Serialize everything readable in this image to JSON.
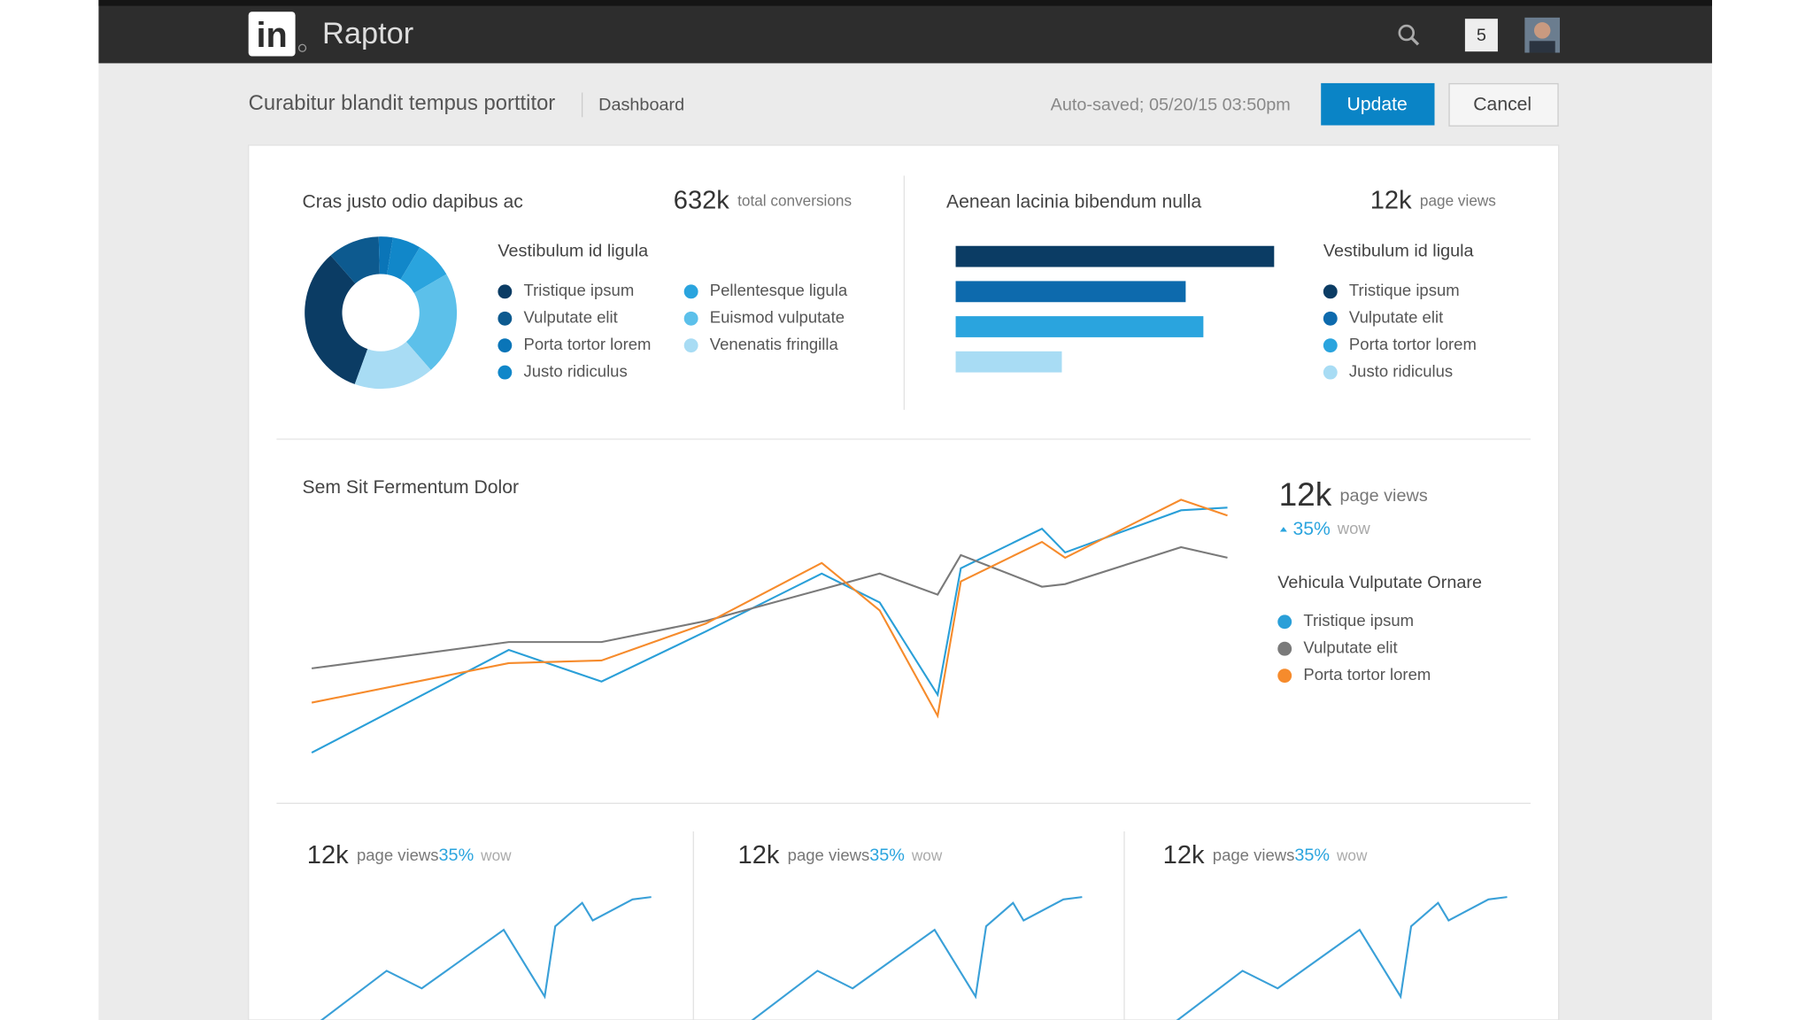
{
  "header": {
    "logo": "in",
    "app_name": "Raptor",
    "notifications": "5"
  },
  "toolbar": {
    "title": "Curabitur blandit tempus porttitor",
    "crumb": "Dashboard",
    "autosave": "Auto-saved; 05/20/15 03:50pm",
    "update": "Update",
    "cancel": "Cancel"
  },
  "chart_data": [
    {
      "type": "pie",
      "title": "Cras justo odio dapibus ac",
      "stat": "632k",
      "stat_label": "total conversions",
      "legend_title": "Vestibulum id ligula",
      "categories": [
        "Tristique ipsum",
        "Vulputate elit",
        "Porta tortor lorem",
        "Justo ridiculus",
        "Pellentesque ligula",
        "Euismod vulputate",
        "Venenatis fringilla"
      ],
      "values": [
        33,
        11,
        3,
        6,
        8,
        22,
        17
      ],
      "colors": [
        "#0b3c64",
        "#0d5a8f",
        "#0a75b8",
        "#1187c9",
        "#2aa4de",
        "#5cc0ea",
        "#a8dcf4"
      ]
    },
    {
      "type": "bar",
      "title": "Aenean lacinia bibendum nulla",
      "stat": "12k",
      "stat_label": "page views",
      "legend_title": "Vestibulum id ligula",
      "categories": [
        "Tristique ipsum",
        "Vulputate elit",
        "Porta tortor lorem",
        "Justo ridiculus"
      ],
      "values": [
        90,
        65,
        70,
        30
      ],
      "colors": [
        "#0b3c64",
        "#0d6aad",
        "#2aa4de",
        "#a8dcf4"
      ]
    },
    {
      "type": "line",
      "title": "Sem Sit Fermentum Dolor",
      "stat": "12k",
      "stat_label": "page views",
      "change": "35%",
      "change_label": "wow",
      "legend_title": "Vehicula Vulputate Ornare",
      "x": [
        0,
        17,
        25,
        34,
        44,
        49,
        54,
        56,
        63,
        65,
        75,
        79
      ],
      "series": [
        {
          "name": "Tristique ipsum",
          "color": "#2a9fd8",
          "values": [
            1,
            40,
            28,
            47,
            69,
            58,
            23,
            71,
            86,
            77,
            93,
            94
          ]
        },
        {
          "name": "Vulputate elit",
          "color": "#7a7a7a",
          "values": [
            33,
            43,
            43,
            51,
            63,
            69,
            61,
            76,
            64,
            65,
            79,
            75
          ]
        },
        {
          "name": "Porta tortor lorem",
          "color": "#f68b2c",
          "values": [
            20,
            35,
            36,
            50,
            73,
            55,
            15,
            66,
            81,
            75,
            97,
            91
          ]
        }
      ]
    },
    {
      "type": "sparkline",
      "stat": "12k",
      "stat_label": "page views",
      "change": "35%",
      "change_label": "wow",
      "x": [
        0,
        62,
        92,
        162,
        197,
        206,
        229,
        238,
        272,
        288
      ],
      "series": [
        {
          "color": "#3aa0d8",
          "values": [
            4,
            51,
            36,
            86,
            29,
            89,
            109,
            94,
            112,
            114
          ]
        }
      ]
    },
    {
      "type": "sparkline",
      "stat": "12k",
      "stat_label": "page views",
      "change": "35%",
      "change_label": "wow",
      "x": [
        0,
        62,
        92,
        162,
        197,
        206,
        229,
        238,
        272,
        288
      ],
      "series": [
        {
          "color": "#3aa0d8",
          "values": [
            4,
            51,
            36,
            86,
            29,
            89,
            109,
            94,
            112,
            114
          ]
        }
      ]
    },
    {
      "type": "sparkline",
      "stat": "12k",
      "stat_label": "page views",
      "change": "35%",
      "change_label": "wow",
      "x": [
        0,
        62,
        92,
        162,
        197,
        206,
        229,
        238,
        272,
        288
      ],
      "series": [
        {
          "color": "#3aa0d8",
          "values": [
            4,
            51,
            36,
            86,
            29,
            89,
            109,
            94,
            112,
            114
          ]
        }
      ]
    }
  ]
}
